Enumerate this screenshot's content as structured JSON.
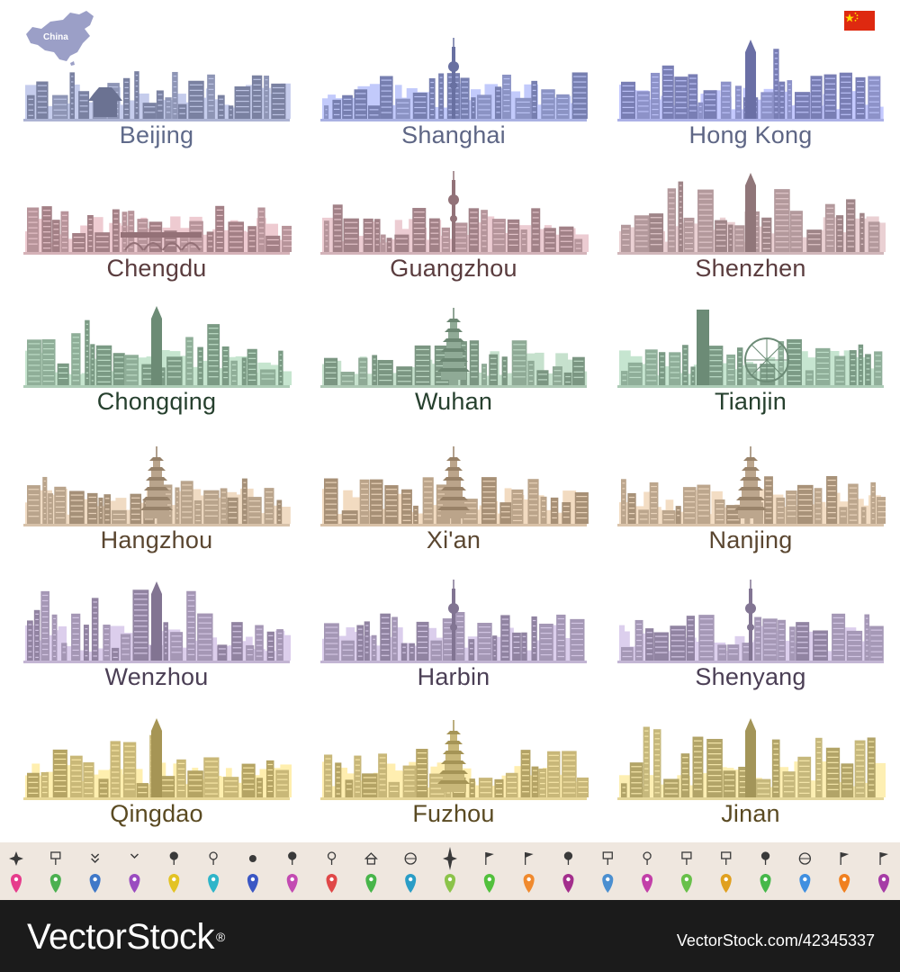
{
  "header": {
    "map_label": "China",
    "flag_colors": {
      "field": "#de2910",
      "star": "#ffde00"
    }
  },
  "cities": [
    {
      "name": "Beijing",
      "color": "#8e95b5",
      "text_color": "#5f6a8a",
      "style": "temple"
    },
    {
      "name": "Shanghai",
      "color": "#8b93c4",
      "text_color": "#5e6685",
      "style": "tower"
    },
    {
      "name": "Hong Kong",
      "color": "#8d92c8",
      "text_color": "#5e6685",
      "style": "skyscraper"
    },
    {
      "name": "Chengdu",
      "color": "#b7949a",
      "text_color": "#5a3c3e",
      "style": "bridge"
    },
    {
      "name": "Guangzhou",
      "color": "#b5959b",
      "text_color": "#5a3c3e",
      "style": "tower"
    },
    {
      "name": "Shenzhen",
      "color": "#b3999c",
      "text_color": "#5a3c3e",
      "style": "skyscraper"
    },
    {
      "name": "Chongqing",
      "color": "#8fae98",
      "text_color": "#26402e",
      "style": "skyscraper"
    },
    {
      "name": "Wuhan",
      "color": "#8faa96",
      "text_color": "#26402e",
      "style": "pagoda"
    },
    {
      "name": "Tianjin",
      "color": "#8fae99",
      "text_color": "#26402e",
      "style": "wheel"
    },
    {
      "name": "Hangzhou",
      "color": "#b9a48c",
      "text_color": "#5a4630",
      "style": "pagoda"
    },
    {
      "name": "Xi'an",
      "color": "#bba48a",
      "text_color": "#5a4630",
      "style": "pagoda"
    },
    {
      "name": "Nanjing",
      "color": "#bca68d",
      "text_color": "#5a4630",
      "style": "pagoda"
    },
    {
      "name": "Wenzhou",
      "color": "#a597b5",
      "text_color": "#4b3f55",
      "style": "skyscraper"
    },
    {
      "name": "Harbin",
      "color": "#a497b5",
      "text_color": "#4b3f55",
      "style": "tower"
    },
    {
      "name": "Shenyang",
      "color": "#a598b6",
      "text_color": "#4b3f55",
      "style": "tower"
    },
    {
      "name": "Qingdao",
      "color": "#c9b878",
      "text_color": "#5a4a22",
      "style": "skyscraper"
    },
    {
      "name": "Fuzhou",
      "color": "#c8b779",
      "text_color": "#5a4a22",
      "style": "pagoda"
    },
    {
      "name": "Jinan",
      "color": "#c6b87c",
      "text_color": "#5a4a22",
      "style": "skyscraper"
    }
  ],
  "icons": {
    "top_row": [
      "compass-star-icon",
      "sign-icon",
      "chevron-double-icon",
      "chevron-icon",
      "pin-icon",
      "pin-outline-icon",
      "thumbtack-icon",
      "pin-icon",
      "pin-outline-icon",
      "home-icon",
      "globe-icon",
      "compass-rose-icon",
      "flag-icon",
      "flag-icon",
      "star-pin-icon",
      "signpost-icon",
      "pin-outline-icon",
      "sign-icon",
      "sign-icon",
      "speech-pin-icon",
      "globe-icon",
      "flag-icon",
      "flag-icon"
    ],
    "bottom_row_colors": [
      "#e63c8c",
      "#4cb050",
      "#3f78c8",
      "#9a4cc0",
      "#e3c324",
      "#2fb5c9",
      "#3b57c4",
      "#c34bb2",
      "#e04848",
      "#48b54a",
      "#2a9dc6",
      "#8bc34a",
      "#52c03c",
      "#f08a2e",
      "#a32e8c",
      "#4b8fd0",
      "#c23fa8",
      "#68c04a",
      "#e0a020",
      "#46b84a",
      "#3f8fe0",
      "#f08020",
      "#a63ca6"
    ]
  },
  "footer": {
    "logo": "VectorStock",
    "logo_mark": "®",
    "image_id": "VectorStock.com/42345337"
  }
}
